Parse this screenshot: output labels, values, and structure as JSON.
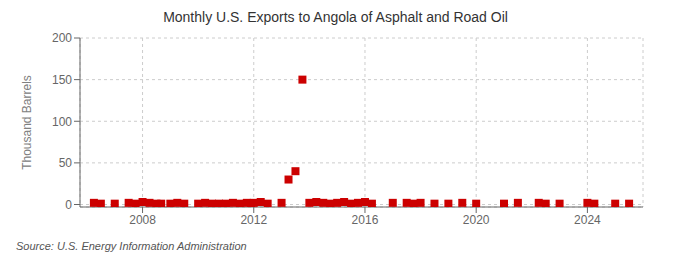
{
  "chart_data": {
    "type": "scatter",
    "title": "Monthly U.S. Exports to Angola of Asphalt and Road Oil",
    "ylabel": "Thousand Barrels",
    "annotation": "Source: U.S. Energy Information Administration",
    "x": [
      2006.25,
      2006.5,
      2007.0,
      2007.5,
      2007.75,
      2008.0,
      2008.25,
      2008.5,
      2008.67,
      2009.0,
      2009.25,
      2009.5,
      2010.0,
      2010.25,
      2010.5,
      2010.75,
      2011.0,
      2011.25,
      2011.5,
      2011.75,
      2011.9,
      2012.0,
      2012.25,
      2012.5,
      2013.0,
      2013.25,
      2013.5,
      2013.75,
      2014.0,
      2014.25,
      2014.5,
      2014.75,
      2015.0,
      2015.25,
      2015.5,
      2015.75,
      2016.0,
      2016.25,
      2017.0,
      2017.5,
      2017.75,
      2018.0,
      2018.5,
      2019.0,
      2019.5,
      2020.0,
      2021.0,
      2021.5,
      2022.25,
      2022.5,
      2023.0,
      2024.0,
      2024.25,
      2025.0,
      2025.5
    ],
    "values": [
      2,
      1,
      1,
      2,
      1,
      3,
      2,
      1,
      1,
      1,
      2,
      1,
      1,
      2,
      1,
      1,
      1,
      2,
      1,
      2,
      1,
      2,
      3,
      1,
      2,
      30,
      40,
      150,
      2,
      3,
      2,
      1,
      2,
      3,
      1,
      2,
      3,
      1,
      2,
      2,
      1,
      2,
      1,
      1,
      2,
      1,
      1,
      2,
      2,
      1,
      1,
      2,
      1,
      1,
      1
    ],
    "color": "#cc0000",
    "marker": "square",
    "xlim": [
      2005.75,
      2026.0
    ],
    "ylim": [
      -3,
      200
    ],
    "xticks": [
      2008,
      2012,
      2016,
      2020,
      2024
    ],
    "yticks": [
      0,
      50,
      100,
      150,
      200
    ],
    "grid": true
  }
}
